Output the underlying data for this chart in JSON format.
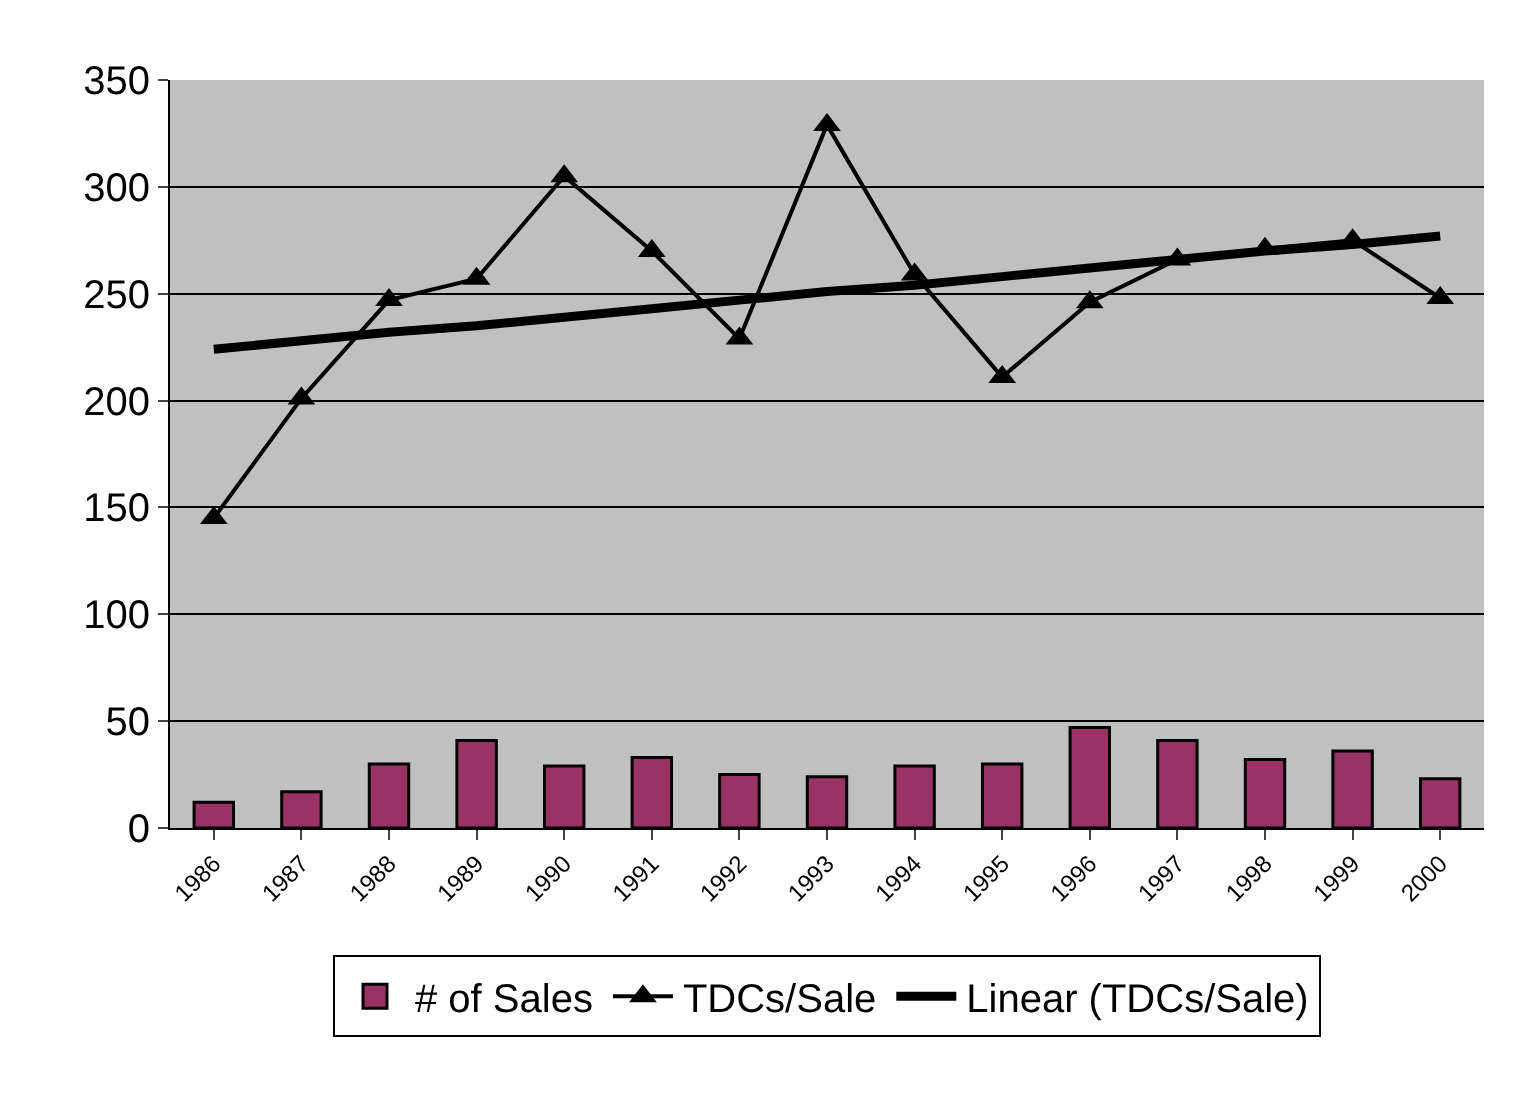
{
  "chart_data": {
    "type": "bar",
    "categories": [
      "1986",
      "1987",
      "1988",
      "1989",
      "1990",
      "1991",
      "1992",
      "1993",
      "1994",
      "1995",
      "1996",
      "1997",
      "1998",
      "1999",
      "2000"
    ],
    "series": [
      {
        "name": "# of Sales",
        "color": "#993366",
        "values": [
          12,
          17,
          30,
          41,
          29,
          33,
          25,
          24,
          29,
          30,
          47,
          41,
          32,
          36,
          23
        ]
      },
      {
        "name": "TDCs/Sale",
        "type": "line",
        "color": "#000000",
        "marker": "triangle",
        "values": [
          145,
          201,
          247,
          257,
          305,
          270,
          229,
          329,
          259,
          211,
          246,
          266,
          271,
          275,
          248
        ]
      },
      {
        "name": "Linear (TDCs/Sale)",
        "type": "line",
        "color": "#000000",
        "marker": "none",
        "values": [
          224,
          228,
          232,
          235,
          239,
          243,
          247,
          251,
          254,
          258,
          262,
          266,
          270,
          273,
          277
        ]
      }
    ],
    "ylim": [
      0,
      350
    ],
    "yticks": [
      0,
      50,
      100,
      150,
      200,
      250,
      300,
      350
    ],
    "grid": "y",
    "legend": "bottom"
  }
}
